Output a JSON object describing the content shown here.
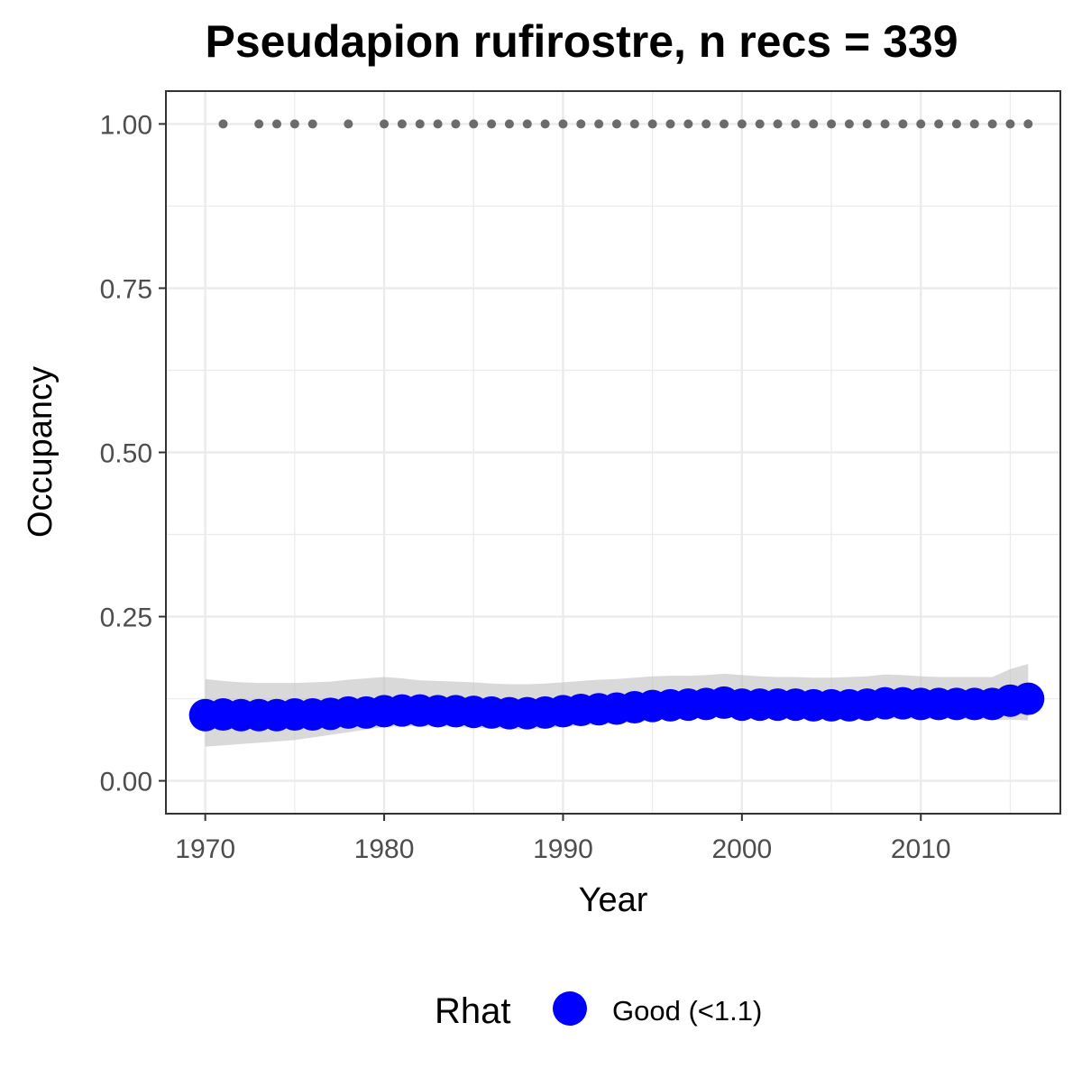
{
  "chart_data": {
    "type": "line",
    "title": "Pseudapion rufirostre, n recs = 339",
    "xlabel": "Year",
    "ylabel": "Occupancy",
    "xlim": [
      1967.8,
      2017.8
    ],
    "ylim": [
      -0.05,
      1.05
    ],
    "x_ticks": [
      1970,
      1980,
      1990,
      2000,
      2010
    ],
    "x_tick_labels": [
      "1970",
      "1980",
      "1990",
      "2000",
      "2010"
    ],
    "y_ticks": [
      0,
      0.25,
      0.5,
      0.75,
      1
    ],
    "y_tick_labels": [
      "0.00",
      "0.25",
      "0.50",
      "0.75",
      "1.00"
    ],
    "grid": true,
    "colors": {
      "series": "#0000ff",
      "band": "#bfbfbf",
      "record_points": "#6b6b6b",
      "grid": "#ebebeb",
      "border": "#333333"
    },
    "series": [
      {
        "name": "Good (<1.1)",
        "x": [
          1970,
          1971,
          1972,
          1973,
          1974,
          1975,
          1976,
          1977,
          1978,
          1979,
          1980,
          1981,
          1982,
          1983,
          1984,
          1985,
          1986,
          1987,
          1988,
          1989,
          1990,
          1991,
          1992,
          1993,
          1994,
          1995,
          1996,
          1997,
          1998,
          1999,
          2000,
          2001,
          2002,
          2003,
          2004,
          2005,
          2006,
          2007,
          2008,
          2009,
          2010,
          2011,
          2012,
          2013,
          2014,
          2015,
          2016
        ],
        "values": [
          0.1,
          0.101,
          0.1,
          0.1,
          0.1,
          0.101,
          0.101,
          0.102,
          0.104,
          0.104,
          0.106,
          0.107,
          0.107,
          0.106,
          0.106,
          0.105,
          0.104,
          0.103,
          0.103,
          0.104,
          0.106,
          0.108,
          0.109,
          0.11,
          0.112,
          0.114,
          0.115,
          0.116,
          0.117,
          0.119,
          0.116,
          0.116,
          0.116,
          0.116,
          0.115,
          0.115,
          0.115,
          0.116,
          0.118,
          0.118,
          0.117,
          0.117,
          0.117,
          0.117,
          0.117,
          0.122,
          0.125
        ],
        "lower": [
          0.052,
          0.054,
          0.056,
          0.058,
          0.06,
          0.062,
          0.066,
          0.07,
          0.074,
          0.078,
          0.082,
          0.083,
          0.083,
          0.083,
          0.082,
          0.081,
          0.08,
          0.079,
          0.078,
          0.08,
          0.082,
          0.084,
          0.086,
          0.087,
          0.089,
          0.093,
          0.095,
          0.096,
          0.097,
          0.098,
          0.096,
          0.096,
          0.095,
          0.095,
          0.094,
          0.094,
          0.093,
          0.093,
          0.094,
          0.094,
          0.094,
          0.094,
          0.094,
          0.093,
          0.093,
          0.093,
          0.092
        ],
        "upper": [
          0.155,
          0.152,
          0.15,
          0.149,
          0.149,
          0.149,
          0.15,
          0.151,
          0.154,
          0.156,
          0.158,
          0.156,
          0.153,
          0.152,
          0.151,
          0.15,
          0.148,
          0.147,
          0.147,
          0.148,
          0.15,
          0.152,
          0.154,
          0.155,
          0.157,
          0.159,
          0.16,
          0.16,
          0.161,
          0.163,
          0.161,
          0.159,
          0.158,
          0.158,
          0.157,
          0.157,
          0.158,
          0.159,
          0.162,
          0.161,
          0.159,
          0.158,
          0.158,
          0.158,
          0.158,
          0.17,
          0.178
        ]
      }
    ],
    "record_years": {
      "y": 1,
      "x": [
        1971,
        1973,
        1974,
        1975,
        1976,
        1978,
        1980,
        1981,
        1982,
        1983,
        1984,
        1985,
        1986,
        1987,
        1988,
        1989,
        1990,
        1991,
        1992,
        1993,
        1994,
        1995,
        1996,
        1997,
        1998,
        1999,
        2000,
        2001,
        2002,
        2003,
        2004,
        2005,
        2006,
        2007,
        2008,
        2009,
        2010,
        2011,
        2012,
        2013,
        2014,
        2015,
        2016
      ]
    },
    "legend": {
      "title": "Rhat",
      "position": "bottom",
      "entries": [
        {
          "label": "Good (<1.1)",
          "color": "#0000ff"
        }
      ]
    }
  }
}
